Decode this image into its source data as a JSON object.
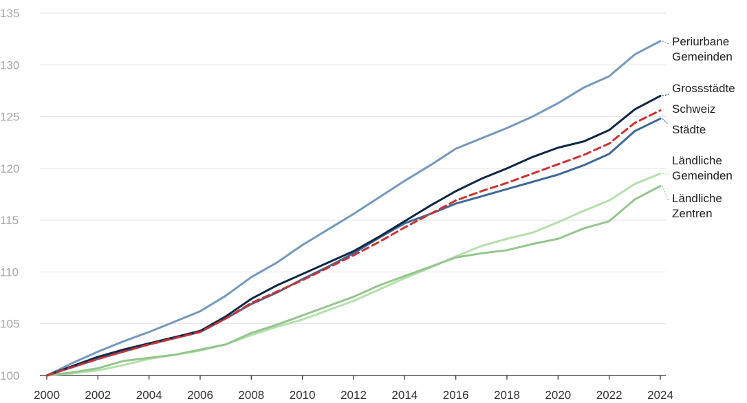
{
  "chart_data": {
    "type": "line",
    "title": "",
    "xlabel": "",
    "ylabel": "",
    "x": [
      2000,
      2001,
      2002,
      2003,
      2004,
      2005,
      2006,
      2007,
      2008,
      2009,
      2010,
      2011,
      2012,
      2013,
      2014,
      2015,
      2016,
      2017,
      2018,
      2019,
      2020,
      2021,
      2022,
      2023,
      2024
    ],
    "xticks": [
      "2000",
      "2002",
      "2004",
      "2006",
      "2008",
      "2010",
      "2012",
      "2014",
      "2016",
      "2018",
      "2020",
      "2022",
      "2024"
    ],
    "yticks": [
      "100",
      "105",
      "110",
      "115",
      "120",
      "125",
      "130",
      "135"
    ],
    "ylim": [
      100,
      135
    ],
    "grid": true,
    "legend": "direct labels at line ends, right",
    "series": [
      {
        "name": "Periurbane Gemeinden",
        "label_lines": [
          "Periurbane",
          "Gemeinden"
        ],
        "color": "#7399be",
        "dashed": false,
        "values": [
          100,
          101.2,
          102.3,
          103.3,
          104.2,
          105.2,
          106.2,
          107.7,
          109.5,
          110.9,
          112.6,
          114.1,
          115.6,
          117.2,
          118.8,
          120.3,
          121.9,
          122.9,
          123.9,
          125.0,
          126.3,
          127.8,
          128.9,
          131.0,
          132.3
        ]
      },
      {
        "name": "Grossstädte",
        "label_lines": [
          "Grossstädte"
        ],
        "color": "#0d2745",
        "dashed": false,
        "values": [
          100,
          100.9,
          101.8,
          102.5,
          103.1,
          103.7,
          104.3,
          105.7,
          107.4,
          108.7,
          109.8,
          110.9,
          112.0,
          113.4,
          114.9,
          116.4,
          117.8,
          119.0,
          120.0,
          121.1,
          122.0,
          122.6,
          123.7,
          125.7,
          127.0
        ]
      },
      {
        "name": "Schweiz",
        "label_lines": [
          "Schweiz"
        ],
        "color": "#d32f2f",
        "dashed": true,
        "values": [
          100,
          100.8,
          101.6,
          102.3,
          103.0,
          103.6,
          104.2,
          105.5,
          107.0,
          108.1,
          109.2,
          110.4,
          111.6,
          112.9,
          114.3,
          115.6,
          116.9,
          117.8,
          118.6,
          119.5,
          120.4,
          121.3,
          122.4,
          124.4,
          125.6
        ]
      },
      {
        "name": "Städte",
        "label_lines": [
          "Städte"
        ],
        "color": "#3d6897",
        "dashed": false,
        "values": [
          100,
          100.8,
          101.6,
          102.3,
          103.0,
          103.6,
          104.2,
          105.5,
          106.9,
          108.0,
          109.3,
          110.5,
          111.8,
          113.3,
          114.7,
          115.6,
          116.6,
          117.3,
          118.0,
          118.7,
          119.4,
          120.3,
          121.4,
          123.6,
          124.8
        ]
      },
      {
        "name": "Ländliche Gemeinden",
        "label_lines": [
          "Ländliche",
          "Gemeinden"
        ],
        "color": "#b5e0ac",
        "dashed": false,
        "values": [
          100,
          100.2,
          100.5,
          101.0,
          101.6,
          102.0,
          102.4,
          103.0,
          103.9,
          104.7,
          105.4,
          106.3,
          107.2,
          108.3,
          109.4,
          110.4,
          111.5,
          112.5,
          113.2,
          113.8,
          114.8,
          115.9,
          116.9,
          118.5,
          119.5
        ]
      },
      {
        "name": "Ländliche Zentren",
        "label_lines": [
          "Ländliche",
          "Zentren"
        ],
        "color": "#93c68c",
        "dashed": false,
        "values": [
          100,
          100.3,
          100.7,
          101.4,
          101.7,
          102.0,
          102.5,
          103.0,
          104.1,
          104.9,
          105.8,
          106.7,
          107.6,
          108.7,
          109.6,
          110.5,
          111.4,
          111.8,
          112.1,
          112.7,
          113.2,
          114.2,
          114.9,
          117.0,
          118.3
        ]
      }
    ]
  }
}
